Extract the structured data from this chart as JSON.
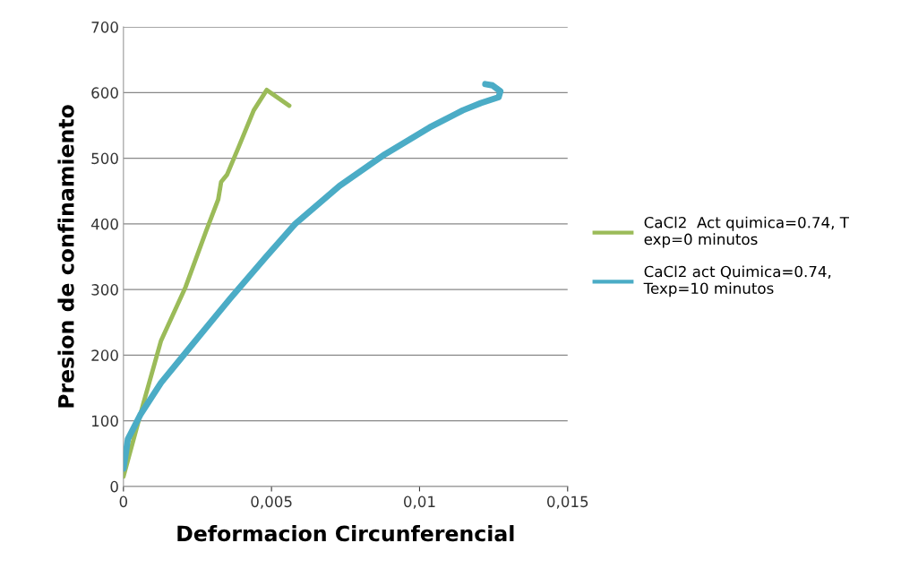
{
  "chart_data": {
    "type": "line",
    "xlabel": "Deformacion Circunferencial",
    "ylabel": "Presion de confinamiento",
    "xlim": [
      0,
      0.015
    ],
    "xticks": [
      {
        "value": 0,
        "label": "0"
      },
      {
        "value": 0.005,
        "label": "0,005"
      },
      {
        "value": 0.01,
        "label": "0,01"
      },
      {
        "value": 0.015,
        "label": "0,015"
      }
    ],
    "ylim": [
      0,
      700
    ],
    "yticks": [
      0,
      100,
      200,
      300,
      400,
      500,
      600,
      700
    ],
    "grid": "y",
    "legend": "right",
    "marker": "none",
    "line_style": "solid",
    "series": [
      {
        "name": "CaCl2  Act quimica=0.74, T\nexp=0 minutos",
        "color": "#9bbb59",
        "x": [
          0,
          0.00067,
          0.00127,
          0.0021,
          0.0028,
          0.0032,
          0.0033,
          0.0035,
          0.0039,
          0.0044,
          0.00484,
          0.0056
        ],
        "values": [
          15,
          126,
          222,
          304,
          390,
          437,
          464,
          475,
          518,
          573,
          604,
          580
        ]
      },
      {
        "name": "CaCl2 act Quimica=0.74,\nTexp=10 minutos",
        "color": "#4bacc6",
        "x": [
          0,
          0.00015,
          0.00057,
          0.00127,
          0.00227,
          0.0036,
          0.0048,
          0.0058,
          0.0073,
          0.00883,
          0.01034,
          0.01146,
          0.01207,
          0.01267,
          0.01273,
          0.01246,
          0.01222
        ],
        "values": [
          27,
          72,
          109,
          158,
          213,
          286,
          349,
          400,
          458,
          506,
          547,
          573,
          584,
          593,
          602,
          611,
          613
        ]
      }
    ]
  }
}
